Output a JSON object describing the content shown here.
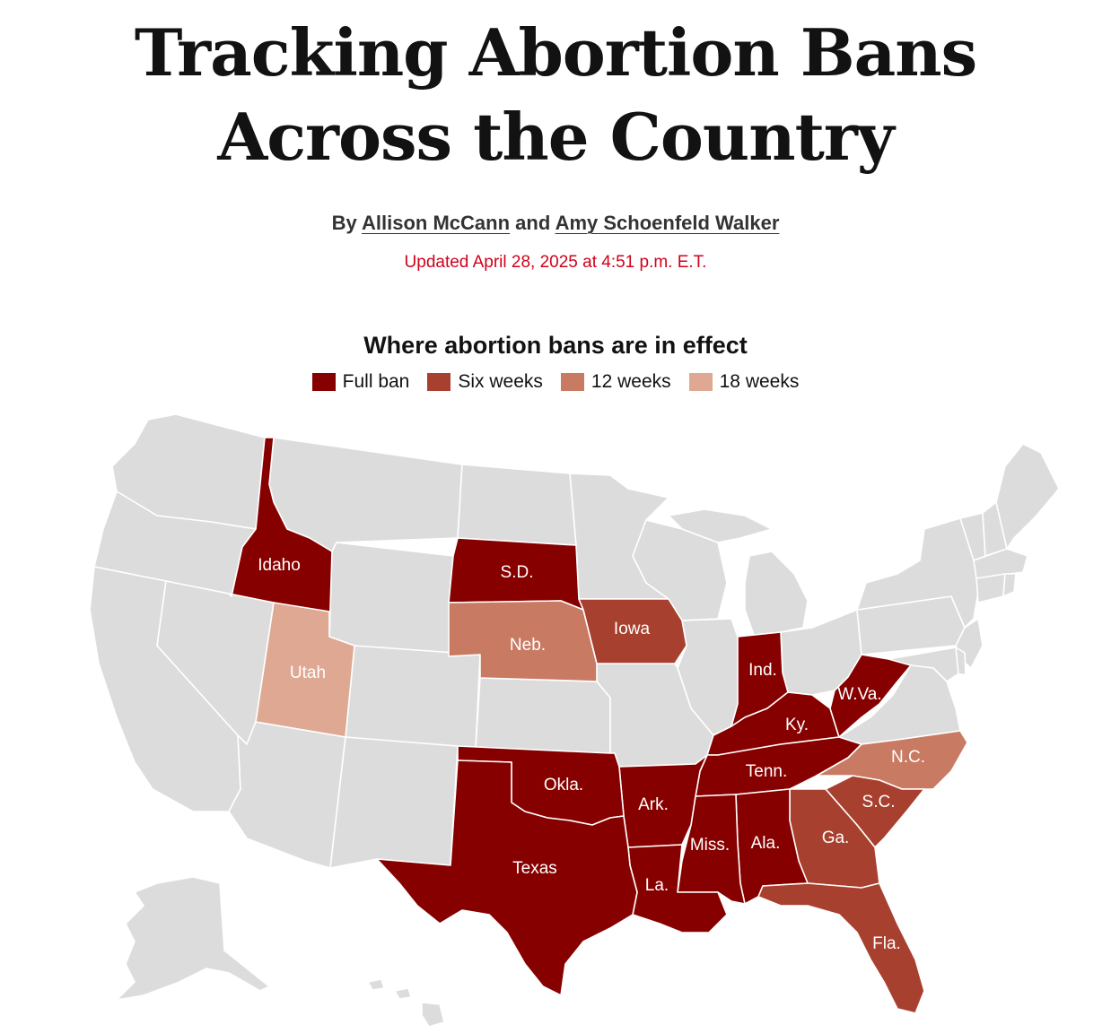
{
  "headline": {
    "line1": "Tracking Abortion Bans",
    "line2": "Across the Country"
  },
  "byline": {
    "prefix": "By",
    "author1": "Allison McCann",
    "conjunction": "and",
    "author2": "Amy Schoenfeld Walker"
  },
  "updated": "Updated April 28, 2025 at 4:51 p.m. E.T.",
  "map": {
    "title": "Where abortion bans are in effect",
    "legend": [
      {
        "label": "Full ban",
        "color": "#870000"
      },
      {
        "label": "Six weeks",
        "color": "#a8402f"
      },
      {
        "label": "12 weeks",
        "color": "#c97a63"
      },
      {
        "label": "18 weeks",
        "color": "#dfa893"
      }
    ],
    "no_ban_color": "#dcdcdc",
    "states": {
      "idaho": {
        "label": "Idaho",
        "status": "Full ban"
      },
      "sd": {
        "label": "S.D.",
        "status": "Full ban"
      },
      "neb": {
        "label": "Neb.",
        "status": "12 weeks"
      },
      "iowa": {
        "label": "Iowa",
        "status": "Six weeks"
      },
      "utah": {
        "label": "Utah",
        "status": "18 weeks"
      },
      "ind": {
        "label": "Ind.",
        "status": "Full ban"
      },
      "ky": {
        "label": "Ky.",
        "status": "Full ban"
      },
      "wva": {
        "label": "W.Va.",
        "status": "Full ban"
      },
      "tenn": {
        "label": "Tenn.",
        "status": "Full ban"
      },
      "nc": {
        "label": "N.C.",
        "status": "12 weeks"
      },
      "sc": {
        "label": "S.C.",
        "status": "Six weeks"
      },
      "okla": {
        "label": "Okla.",
        "status": "Full ban"
      },
      "ark": {
        "label": "Ark.",
        "status": "Full ban"
      },
      "miss": {
        "label": "Miss.",
        "status": "Full ban"
      },
      "ala": {
        "label": "Ala.",
        "status": "Full ban"
      },
      "ga": {
        "label": "Ga.",
        "status": "Six weeks"
      },
      "texas": {
        "label": "Texas",
        "status": "Full ban"
      },
      "la": {
        "label": "La.",
        "status": "Full ban"
      },
      "fla": {
        "label": "Fla.",
        "status": "Six weeks"
      }
    }
  }
}
